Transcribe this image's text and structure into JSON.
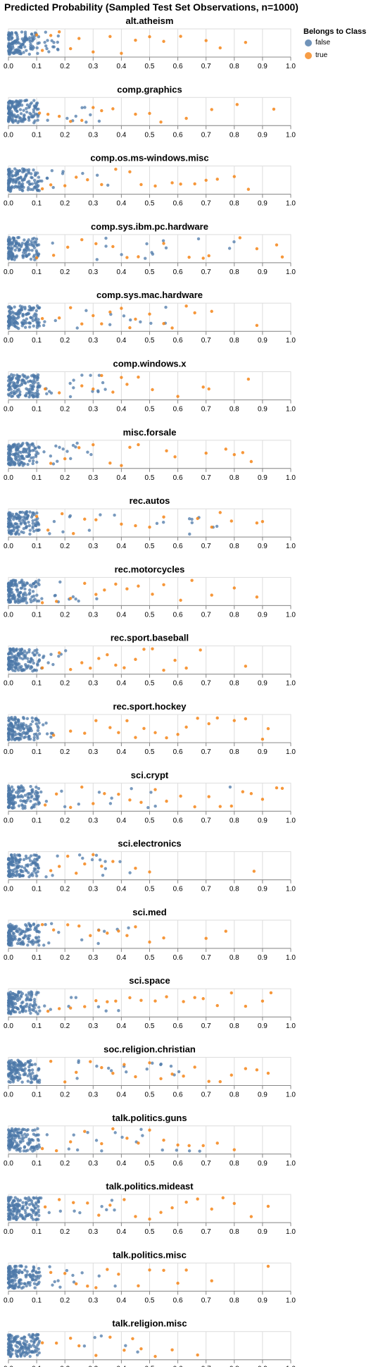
{
  "chart_data": {
    "type": "scatter",
    "title": "Predicted Probability (Sampled Test Set Observations, n=1000)",
    "xlim": [
      0,
      1
    ],
    "x_ticks": [
      "0.0",
      "0.1",
      "0.2",
      "0.3",
      "0.4",
      "0.5",
      "0.6",
      "0.7",
      "0.8",
      "0.9",
      "1.0"
    ],
    "grid": true,
    "legend": {
      "title": "Belongs to Class",
      "position": "top-right",
      "entries": [
        {
          "label": "false",
          "color": "#4c78a8"
        },
        {
          "label": "true",
          "color": "#f58518"
        }
      ]
    },
    "facets": [
      {
        "title": "alt.atheism",
        "true_x": [
          0.1,
          0.12,
          0.15,
          0.18,
          0.22,
          0.25,
          0.3,
          0.36,
          0.4,
          0.45,
          0.5,
          0.55,
          0.61,
          0.7,
          0.75,
          0.84
        ],
        "false_x_max": 0.2
      },
      {
        "title": "comp.graphics",
        "true_x": [
          0.11,
          0.14,
          0.18,
          0.22,
          0.26,
          0.3,
          0.33,
          0.37,
          0.45,
          0.5,
          0.54,
          0.63,
          0.72,
          0.81,
          0.94
        ],
        "false_x_max": 0.33
      },
      {
        "title": "comp.os.ms-windows.misc",
        "true_x": [
          0.12,
          0.15,
          0.2,
          0.24,
          0.28,
          0.33,
          0.38,
          0.43,
          0.47,
          0.52,
          0.58,
          0.61,
          0.66,
          0.7,
          0.74,
          0.8,
          0.85
        ],
        "false_x_max": 0.4
      },
      {
        "title": "comp.sys.ibm.pc.hardware",
        "true_x": [
          0.1,
          0.16,
          0.21,
          0.26,
          0.31,
          0.37,
          0.42,
          0.46,
          0.55,
          0.64,
          0.69,
          0.71,
          0.82,
          0.88,
          0.95,
          0.97
        ],
        "false_x_max": 0.84
      },
      {
        "title": "comp.sys.mac.hardware",
        "true_x": [
          0.12,
          0.18,
          0.22,
          0.26,
          0.3,
          0.33,
          0.36,
          0.4,
          0.43,
          0.45,
          0.5,
          0.55,
          0.58,
          0.63,
          0.66,
          0.72,
          0.88
        ],
        "false_x_max": 0.69
      },
      {
        "title": "comp.windows.x",
        "true_x": [
          0.13,
          0.18,
          0.26,
          0.3,
          0.33,
          0.37,
          0.4,
          0.42,
          0.46,
          0.51,
          0.6,
          0.69,
          0.71,
          0.85
        ],
        "false_x_max": 0.36
      },
      {
        "title": "misc.forsale",
        "true_x": [
          0.15,
          0.2,
          0.25,
          0.3,
          0.36,
          0.4,
          0.43,
          0.46,
          0.56,
          0.59,
          0.7,
          0.77,
          0.8,
          0.83,
          0.86
        ],
        "false_x_max": 0.35
      },
      {
        "title": "rec.autos",
        "true_x": [
          0.1,
          0.14,
          0.19,
          0.23,
          0.27,
          0.31,
          0.4,
          0.45,
          0.5,
          0.55,
          0.67,
          0.72,
          0.75,
          0.79,
          0.88,
          0.9
        ],
        "false_x_max": 0.77
      },
      {
        "title": "rec.motorcycles",
        "true_x": [
          0.12,
          0.17,
          0.22,
          0.27,
          0.31,
          0.34,
          0.38,
          0.42,
          0.46,
          0.51,
          0.55,
          0.61,
          0.65,
          0.72,
          0.8,
          0.88
        ],
        "false_x_max": 0.36
      },
      {
        "title": "rec.sport.baseball",
        "true_x": [
          0.12,
          0.18,
          0.22,
          0.26,
          0.29,
          0.32,
          0.35,
          0.38,
          0.41,
          0.45,
          0.48,
          0.51,
          0.55,
          0.59,
          0.63,
          0.68,
          0.84
        ],
        "false_x_max": 0.22
      },
      {
        "title": "rec.sport.hockey",
        "true_x": [
          0.16,
          0.22,
          0.27,
          0.31,
          0.36,
          0.39,
          0.42,
          0.45,
          0.48,
          0.52,
          0.56,
          0.6,
          0.63,
          0.67,
          0.71,
          0.74,
          0.8,
          0.84,
          0.9,
          0.92
        ],
        "false_x_max": 0.16
      },
      {
        "title": "sci.crypt",
        "true_x": [
          0.13,
          0.17,
          0.22,
          0.26,
          0.3,
          0.34,
          0.39,
          0.43,
          0.47,
          0.52,
          0.56,
          0.61,
          0.66,
          0.71,
          0.75,
          0.79,
          0.83,
          0.86,
          0.9,
          0.95,
          0.97
        ],
        "false_x_max": 0.8
      },
      {
        "title": "sci.electronics",
        "true_x": [
          0.15,
          0.18,
          0.21,
          0.24,
          0.27,
          0.3,
          0.33,
          0.37,
          0.45,
          0.5,
          0.87
        ],
        "false_x_max": 0.46
      },
      {
        "title": "sci.med",
        "true_x": [
          0.12,
          0.16,
          0.21,
          0.25,
          0.29,
          0.32,
          0.35,
          0.39,
          0.42,
          0.45,
          0.5,
          0.55,
          0.7,
          0.77
        ],
        "false_x_max": 0.43
      },
      {
        "title": "sci.space",
        "true_x": [
          0.14,
          0.18,
          0.22,
          0.27,
          0.31,
          0.35,
          0.38,
          0.43,
          0.47,
          0.52,
          0.56,
          0.62,
          0.66,
          0.69,
          0.74,
          0.79,
          0.84,
          0.9,
          0.93
        ],
        "false_x_max": 0.4
      },
      {
        "title": "soc.religion.christian",
        "true_x": [
          0.15,
          0.2,
          0.24,
          0.29,
          0.33,
          0.37,
          0.41,
          0.45,
          0.5,
          0.54,
          0.58,
          0.62,
          0.66,
          0.71,
          0.75,
          0.79,
          0.84,
          0.88,
          0.92
        ],
        "false_x_max": 0.88
      },
      {
        "title": "talk.politics.guns",
        "true_x": [
          0.12,
          0.17,
          0.22,
          0.27,
          0.33,
          0.37,
          0.42,
          0.46,
          0.5,
          0.55,
          0.6,
          0.64,
          0.69,
          0.74,
          0.8
        ],
        "false_x_max": 0.75
      },
      {
        "title": "talk.politics.mideast",
        "true_x": [
          0.13,
          0.18,
          0.23,
          0.28,
          0.32,
          0.36,
          0.41,
          0.45,
          0.5,
          0.54,
          0.58,
          0.63,
          0.67,
          0.72,
          0.76,
          0.8,
          0.86,
          0.92
        ],
        "false_x_max": 0.4
      },
      {
        "title": "talk.politics.misc",
        "true_x": [
          0.15,
          0.2,
          0.24,
          0.28,
          0.31,
          0.35,
          0.39,
          0.46,
          0.5,
          0.55,
          0.6,
          0.63,
          0.72,
          0.92
        ],
        "false_x_max": 0.38
      },
      {
        "title": "talk.religion.misc",
        "true_x": [
          0.12,
          0.17,
          0.22,
          0.25,
          0.31,
          0.36,
          0.41,
          0.44,
          0.47,
          0.52,
          0.58,
          0.67
        ],
        "false_x_max": 0.47
      }
    ]
  }
}
